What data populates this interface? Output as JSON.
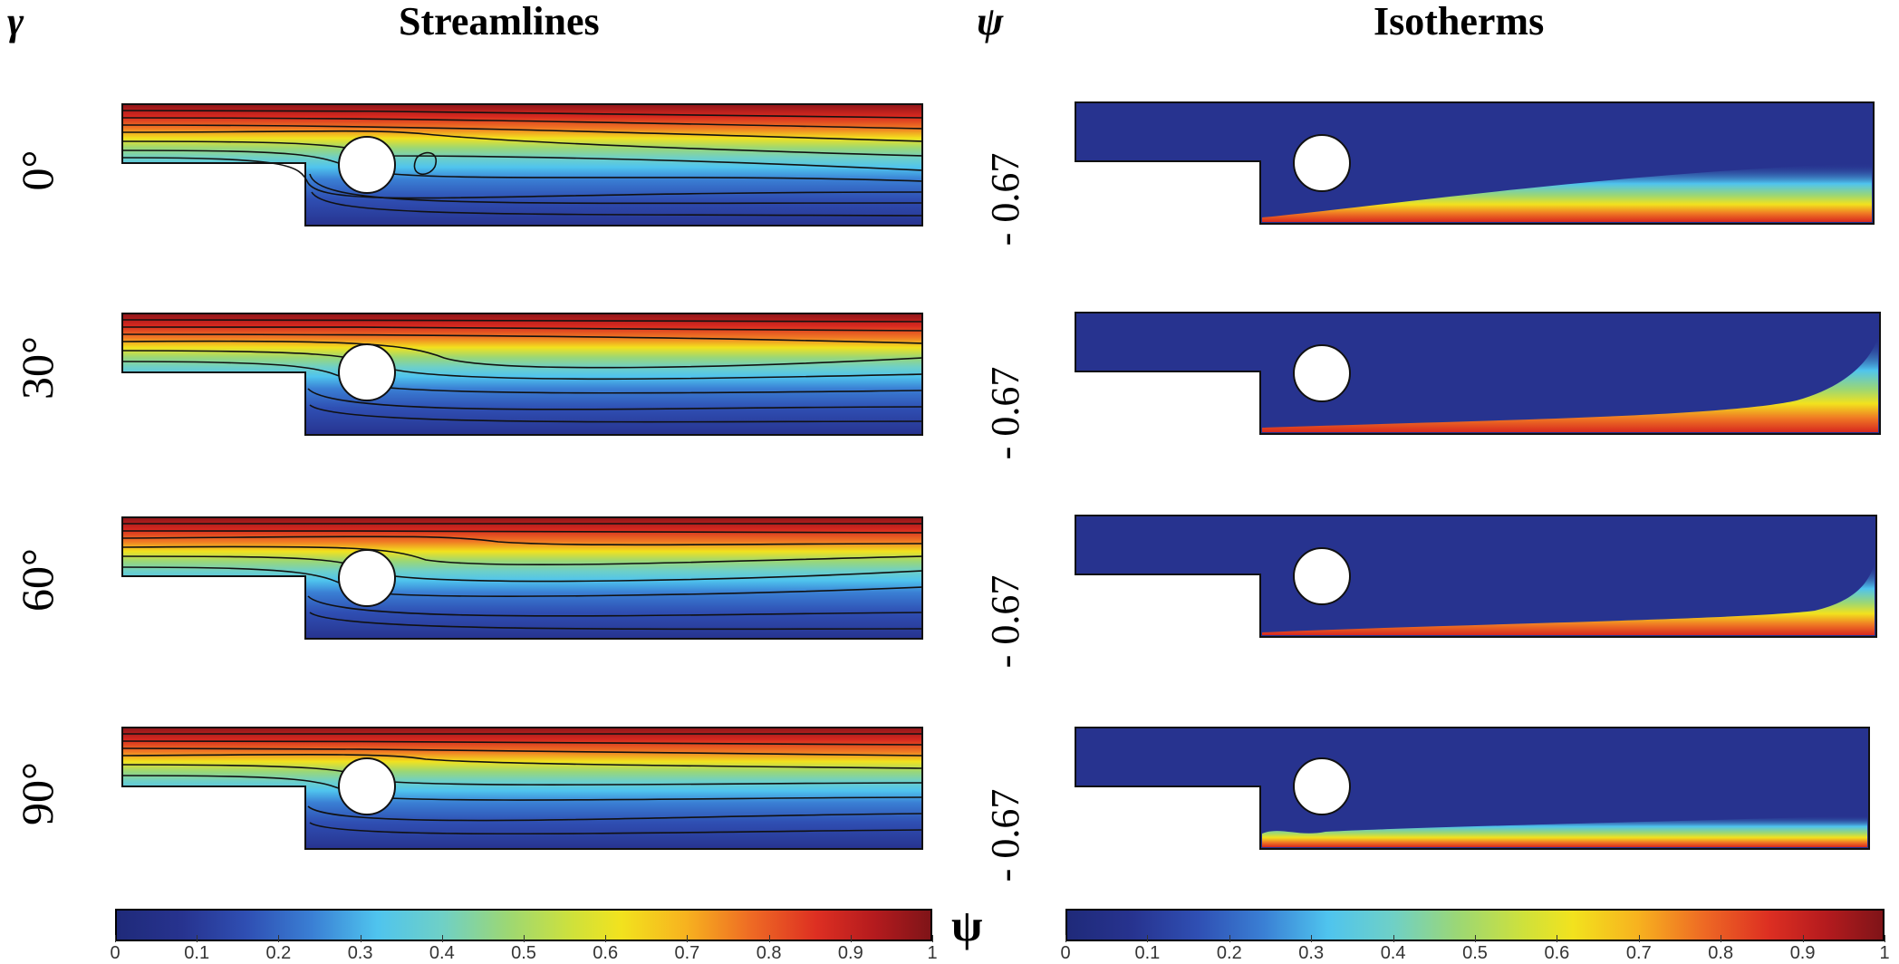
{
  "headers": {
    "gamma_symbol": "γ",
    "streamlines_title": "Streamlines",
    "psi_symbol": "ψ",
    "isotherms_title": "Isotherms"
  },
  "rows": [
    {
      "gamma": "0°",
      "psi_value": "- 0.67"
    },
    {
      "gamma": "30°",
      "psi_value": "- 0.67"
    },
    {
      "gamma": "60°",
      "psi_value": "- 0.67"
    },
    {
      "gamma": "90°",
      "psi_value": "- 0.67"
    }
  ],
  "colorbar_streamlines": {
    "symbol": "ψ",
    "ticks": [
      "0",
      "0.1",
      "0.2",
      "0.3",
      "0.4",
      "0.5",
      "0.6",
      "0.7",
      "0.8",
      "0.9",
      "1"
    ]
  },
  "colorbar_isotherms": {
    "ticks": [
      "0",
      "0.1",
      "0.2",
      "0.3",
      "0.4",
      "0.5",
      "0.6",
      "0.7",
      "0.8",
      "0.9",
      "1"
    ]
  },
  "colors": {
    "cold": "#27338f",
    "hot": "#b51b1e"
  }
}
